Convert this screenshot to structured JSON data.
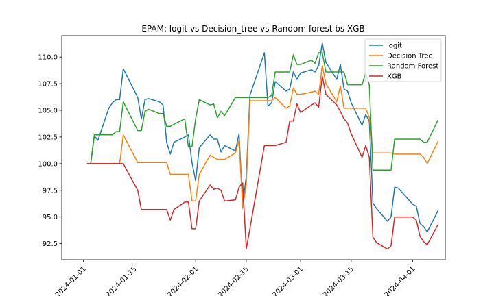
{
  "chart_data": {
    "type": "line",
    "title": "EPAM: logit vs Decision_tree vs Random forest bs XGB",
    "xlabel": "",
    "ylabel": "",
    "x_axis_type": "date",
    "xlim": [
      "2023-12-26",
      "2024-04-10"
    ],
    "ylim": [
      91.0,
      112.0
    ],
    "x_ticks": [
      "2024-01-01",
      "2024-01-15",
      "2024-02-01",
      "2024-02-15",
      "2024-03-01",
      "2024-03-15",
      "2024-04-01"
    ],
    "y_ticks": [
      92.5,
      95.0,
      97.5,
      100.0,
      102.5,
      105.0,
      107.5,
      110.0
    ],
    "grid": false,
    "legend_position": "top-right",
    "x": [
      "2024-01-02",
      "2024-01-03",
      "2024-01-04",
      "2024-01-05",
      "2024-01-08",
      "2024-01-09",
      "2024-01-10",
      "2024-01-11",
      "2024-01-12",
      "2024-01-16",
      "2024-01-17",
      "2024-01-18",
      "2024-01-19",
      "2024-01-22",
      "2024-01-23",
      "2024-01-24",
      "2024-01-25",
      "2024-01-26",
      "2024-01-29",
      "2024-01-30",
      "2024-01-31",
      "2024-02-01",
      "2024-02-02",
      "2024-02-05",
      "2024-02-06",
      "2024-02-07",
      "2024-02-08",
      "2024-02-09",
      "2024-02-12",
      "2024-02-13",
      "2024-02-14",
      "2024-02-15",
      "2024-02-16",
      "2024-02-20",
      "2024-02-21",
      "2024-02-22",
      "2024-02-23",
      "2024-02-26",
      "2024-02-27",
      "2024-02-28",
      "2024-02-29",
      "2024-03-01",
      "2024-03-04",
      "2024-03-05",
      "2024-03-06",
      "2024-03-07",
      "2024-03-08",
      "2024-03-11",
      "2024-03-12",
      "2024-03-13",
      "2024-03-14",
      "2024-03-15",
      "2024-03-18",
      "2024-03-19",
      "2024-03-20",
      "2024-03-21",
      "2024-03-22",
      "2024-03-25",
      "2024-03-26",
      "2024-03-27",
      "2024-03-28",
      "2024-04-01",
      "2024-04-02",
      "2024-04-03",
      "2024-04-04",
      "2024-04-05",
      "2024-04-08"
    ],
    "series": [
      {
        "name": "logit",
        "color": "#1f77b4",
        "values": [
          100.0,
          100.0,
          102.6,
          102.2,
          105.2,
          105.7,
          106.0,
          106.0,
          108.9,
          106.2,
          104.2,
          106.0,
          106.1,
          105.8,
          105.5,
          102.0,
          100.9,
          102.0,
          102.5,
          102.7,
          100.1,
          98.4,
          101.5,
          102.7,
          102.3,
          102.3,
          101.1,
          101.7,
          101.2,
          102.8,
          96.2,
          98.8,
          106.4,
          110.4,
          105.4,
          105.7,
          107.7,
          106.8,
          107.0,
          108.6,
          107.9,
          108.5,
          108.8,
          108.6,
          109.2,
          111.3,
          109.5,
          107.9,
          109.3,
          107.0,
          106.8,
          105.7,
          103.6,
          104.6,
          104.0,
          96.3,
          95.8,
          94.6,
          95.0,
          97.8,
          97.7,
          96.2,
          96.0,
          94.4,
          94.1,
          93.6,
          95.6
        ]
      },
      {
        "name": "Decision Tree",
        "color": "#ff7f0e",
        "values": [
          100.0,
          100.0,
          100.0,
          100.0,
          100.0,
          100.0,
          100.0,
          100.0,
          102.7,
          100.1,
          100.1,
          100.1,
          100.1,
          100.1,
          100.1,
          100.1,
          99.0,
          99.0,
          99.0,
          99.0,
          96.5,
          96.5,
          99.0,
          100.8,
          100.6,
          100.4,
          100.4,
          100.4,
          101.0,
          102.2,
          95.8,
          98.1,
          105.9,
          105.9,
          105.9,
          105.9,
          106.2,
          105.2,
          105.4,
          107.1,
          106.5,
          106.5,
          106.7,
          106.8,
          106.5,
          109.2,
          107.5,
          105.8,
          107.3,
          105.2,
          105.2,
          105.2,
          105.2,
          105.2,
          104.3,
          101.0,
          101.0,
          101.0,
          101.0,
          100.9,
          100.9,
          100.9,
          100.9,
          100.9,
          100.6,
          100.0,
          102.1
        ]
      },
      {
        "name": "Random Forest",
        "color": "#2ca02c",
        "values": [
          100.0,
          100.0,
          102.7,
          102.7,
          102.7,
          102.7,
          103.0,
          103.0,
          105.8,
          103.1,
          103.1,
          104.9,
          105.1,
          104.7,
          104.7,
          103.5,
          103.5,
          103.7,
          104.2,
          101.6,
          101.6,
          104.2,
          106.0,
          105.5,
          105.6,
          104.3,
          104.9,
          104.5,
          106.2,
          106.2,
          106.2,
          106.2,
          106.2,
          106.2,
          106.2,
          106.4,
          108.6,
          108.6,
          108.6,
          110.2,
          109.3,
          109.3,
          109.7,
          109.4,
          110.4,
          110.4,
          108.6,
          108.6,
          108.6,
          108.6,
          107.4,
          107.4,
          107.4,
          108.5,
          107.4,
          99.4,
          99.4,
          99.4,
          99.4,
          102.3,
          102.3,
          102.3,
          102.3,
          102.3,
          102.0,
          102.0,
          104.1
        ]
      },
      {
        "name": "XGB",
        "color": "#d62728",
        "values": [
          100.0,
          100.0,
          100.0,
          100.0,
          100.0,
          100.0,
          100.0,
          100.0,
          100.0,
          97.5,
          95.7,
          95.7,
          95.7,
          95.7,
          95.7,
          95.7,
          94.7,
          95.7,
          96.4,
          96.4,
          93.9,
          93.9,
          96.5,
          98.0,
          97.6,
          97.7,
          97.5,
          96.5,
          96.6,
          97.8,
          98.2,
          92.0,
          93.9,
          101.7,
          101.7,
          101.7,
          101.7,
          102.0,
          104.0,
          104.0,
          105.6,
          104.8,
          105.5,
          105.7,
          105.3,
          108.2,
          106.5,
          105.5,
          104.9,
          104.2,
          103.8,
          102.8,
          100.6,
          101.7,
          100.6,
          93.1,
          92.6,
          92.0,
          92.3,
          95.0,
          95.0,
          95.0,
          94.7,
          93.2,
          92.7,
          92.4,
          94.3
        ]
      }
    ]
  }
}
